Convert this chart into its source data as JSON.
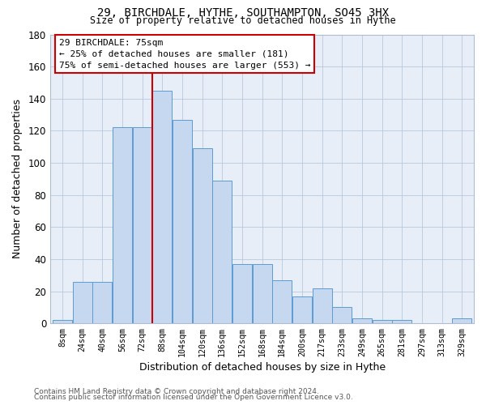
{
  "title1": "29, BIRCHDALE, HYTHE, SOUTHAMPTON, SO45 3HX",
  "title2": "Size of property relative to detached houses in Hythe",
  "xlabel": "Distribution of detached houses by size in Hythe",
  "ylabel": "Number of detached properties",
  "bin_labels": [
    "8sqm",
    "24sqm",
    "40sqm",
    "56sqm",
    "72sqm",
    "88sqm",
    "104sqm",
    "120sqm",
    "136sqm",
    "152sqm",
    "168sqm",
    "184sqm",
    "200sqm",
    "217sqm",
    "233sqm",
    "249sqm",
    "265sqm",
    "281sqm",
    "297sqm",
    "313sqm",
    "329sqm"
  ],
  "bar_values": [
    2,
    26,
    26,
    122,
    122,
    145,
    127,
    109,
    89,
    37,
    37,
    27,
    17,
    22,
    10,
    3,
    2,
    2,
    0,
    0,
    3
  ],
  "bar_color": "#c5d8f0",
  "bar_edge_color": "#5b9bd5",
  "red_line_x": 4.5,
  "annotation_title": "29 BIRCHDALE: 75sqm",
  "annotation_line1": "← 25% of detached houses are smaller (181)",
  "annotation_line2": "75% of semi-detached houses are larger (553) →",
  "annotation_box_color": "#ffffff",
  "annotation_box_edge": "#cc0000",
  "red_line_color": "#cc0000",
  "ylim": [
    0,
    180
  ],
  "yticks": [
    0,
    20,
    40,
    60,
    80,
    100,
    120,
    140,
    160,
    180
  ],
  "footer1": "Contains HM Land Registry data © Crown copyright and database right 2024.",
  "footer2": "Contains public sector information licensed under the Open Government Licence v3.0.",
  "bg_color": "#ffffff",
  "plot_bg_color": "#e8eef8"
}
